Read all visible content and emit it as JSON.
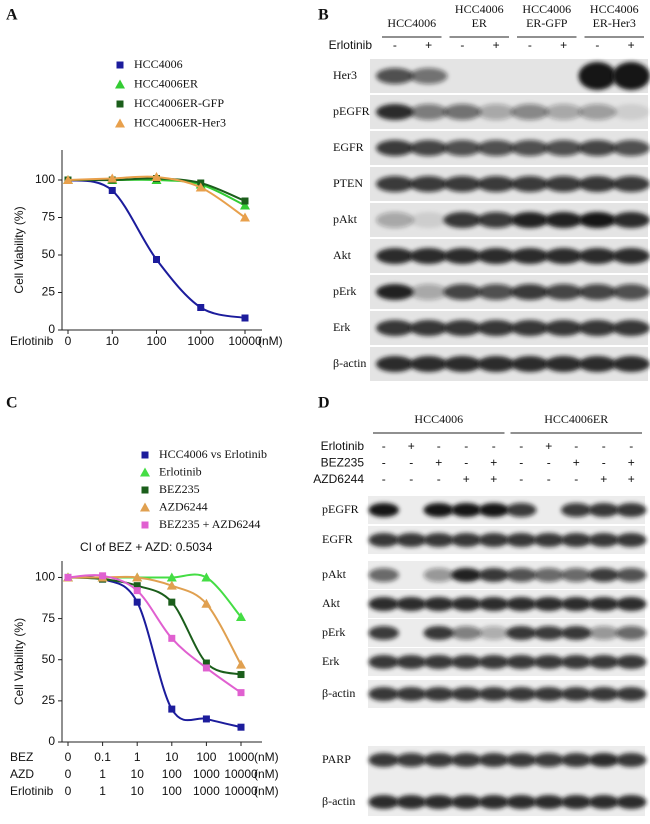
{
  "panels": {
    "a": "A",
    "b": "B",
    "c": "C",
    "d": "D"
  },
  "chart_data": [
    {
      "type": "line",
      "y_label": "Cell Viability (%)",
      "x_label": "Erlotinib",
      "x_unit": "(nM)",
      "categories": [
        "0",
        "10",
        "100",
        "1000",
        "10000"
      ],
      "ylim": [
        0,
        120
      ],
      "yticks": [
        0,
        25,
        50,
        75,
        100
      ],
      "series": [
        {
          "name": "HCC4006",
          "color": "#1c1c9c",
          "marker": "square",
          "values": [
            100,
            93,
            47,
            15,
            8
          ]
        },
        {
          "name": "HCC4006ER",
          "color": "#33cc33",
          "marker": "triangle",
          "values": [
            100,
            100,
            100,
            97,
            83
          ]
        },
        {
          "name": "HCC4006ER-GFP",
          "color": "#1b5e1b",
          "marker": "square",
          "values": [
            100,
            100,
            101,
            98,
            86
          ]
        },
        {
          "name": "HCC4006ER-Her3",
          "color": "#e8a04c",
          "marker": "triangle",
          "values": [
            100,
            101,
            102,
            95,
            75
          ]
        }
      ]
    },
    {
      "type": "line",
      "y_label": "Cell Viability (%)",
      "annotation": "CI of BEZ + AZD: 0.5034",
      "x_unit": "(nM)",
      "x_label": "BEZ",
      "categories": [
        "0",
        "0.1",
        "1",
        "10",
        "100",
        "1000"
      ],
      "extra_x_rows": [
        {
          "name": "AZD",
          "labels": [
            "0",
            "1",
            "10",
            "100",
            "1000",
            "10000"
          ]
        },
        {
          "name": "Erlotinib",
          "labels": [
            "0",
            "1",
            "10",
            "100",
            "1000",
            "10000"
          ]
        }
      ],
      "ylim": [
        0,
        110
      ],
      "yticks": [
        0,
        25,
        50,
        75,
        100
      ],
      "series": [
        {
          "name": "HCC4006 vs Erlotinib",
          "color": "#1c1c9c",
          "marker": "square",
          "values": [
            100,
            99,
            85,
            20,
            14,
            9
          ]
        },
        {
          "name": "Erlotinib",
          "color": "#44dd44",
          "marker": "triangle",
          "values": [
            100,
            100,
            100,
            100,
            100,
            76
          ]
        },
        {
          "name": "BEZ235",
          "color": "#1b5e1b",
          "marker": "square",
          "values": [
            100,
            99,
            95,
            85,
            48,
            41
          ]
        },
        {
          "name": "AZD6244",
          "color": "#e0a050",
          "marker": "triangle",
          "values": [
            100,
            100,
            100,
            95,
            84,
            47
          ]
        },
        {
          "name": "BEZ235 + AZD6244",
          "color": "#e060d0",
          "marker": "square",
          "values": [
            100,
            101,
            92,
            63,
            45,
            30
          ]
        }
      ]
    }
  ],
  "blot_b": {
    "groups": [
      [
        "HCC4006"
      ],
      [
        "HCC4006",
        "ER"
      ],
      [
        "HCC4006",
        "ER-GFP"
      ],
      [
        "HCC4006",
        "ER-Her3"
      ]
    ],
    "treatment": {
      "label": "Erlotinib",
      "signs": [
        "-",
        "+",
        "-",
        "+",
        "-",
        "+",
        "-",
        "+"
      ]
    },
    "rows": [
      "Her3",
      "pEGFR",
      "EGFR",
      "PTEN",
      "pAkt",
      "Akt",
      "pErk",
      "Erk",
      "β-actin"
    ]
  },
  "blot_d": {
    "groups": [
      "HCC4006",
      "HCC4006ER"
    ],
    "treatments": [
      {
        "label": "Erlotinib",
        "signs": [
          "-",
          "+",
          "-",
          "-",
          "-",
          "-",
          "+",
          "-",
          "-",
          "-"
        ]
      },
      {
        "label": "BEZ235",
        "signs": [
          "-",
          "-",
          "+",
          "-",
          "+",
          "-",
          "-",
          "+",
          "-",
          "+"
        ]
      },
      {
        "label": "AZD6244",
        "signs": [
          "-",
          "-",
          "-",
          "+",
          "+",
          "-",
          "-",
          "-",
          "+",
          "+"
        ]
      }
    ],
    "rows": [
      "pEGFR",
      "EGFR",
      "pAkt",
      "Akt",
      "pErk",
      "Erk",
      "β-actin",
      "PARP",
      "β-actin"
    ]
  }
}
